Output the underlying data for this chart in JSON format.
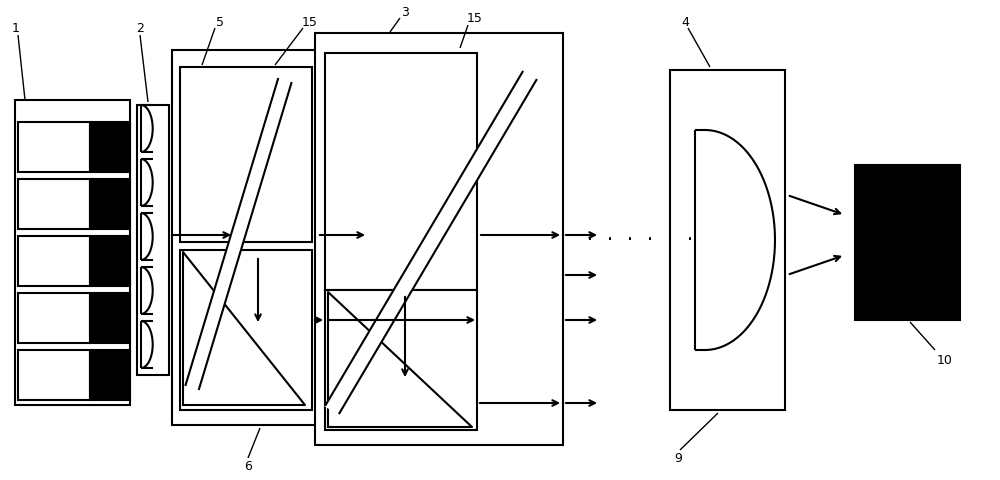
{
  "bg": "#ffffff",
  "lc": "#000000",
  "figw": 10.0,
  "figh": 4.8,
  "dpi": 100,
  "lw": 1.5,
  "lw_thin": 1.0,
  "lw_mirror": 2.5,
  "label_fs": 9,
  "arrow_ms": 10
}
